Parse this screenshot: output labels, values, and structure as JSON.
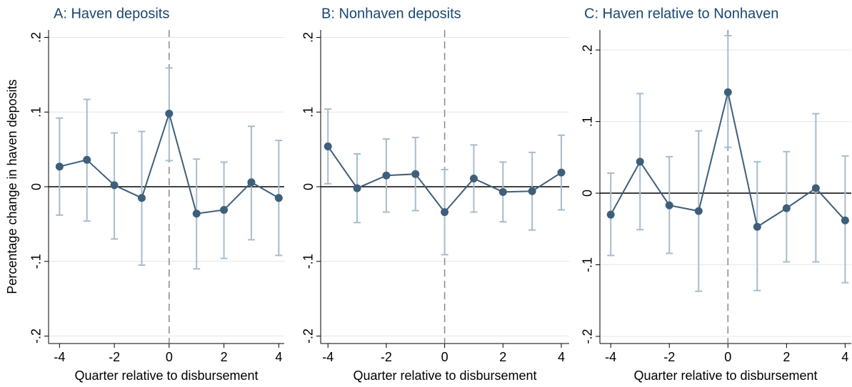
{
  "chart_data": [
    {
      "type": "errorbar-line",
      "title": "A: Haven deposits",
      "xlabel": "Quarter relative to disbursement",
      "ylabel": "Percentage change in haven deposits",
      "x": [
        -4,
        -3,
        -2,
        -1,
        0,
        1,
        2,
        3,
        4
      ],
      "series": [
        {
          "color": "#3e5f7a",
          "ci_color": "#a8bccb",
          "values": [
            0.027,
            0.036,
            0.002,
            -0.015,
            0.098,
            -0.036,
            -0.031,
            0.006,
            -0.015
          ],
          "ci_low": [
            -0.038,
            -0.046,
            -0.07,
            -0.105,
            0.035,
            -0.11,
            -0.096,
            -0.071,
            -0.092
          ],
          "ci_high": [
            0.092,
            0.117,
            0.072,
            0.074,
            0.159,
            0.037,
            0.033,
            0.081,
            0.062
          ]
        }
      ],
      "xlim": [
        -4.4,
        4.2
      ],
      "xticks": [
        -4,
        -2,
        0,
        2,
        4
      ],
      "ylim": [
        -0.21,
        0.21
      ],
      "yticks": [
        {
          "value": -0.2,
          "label": "-.2"
        },
        {
          "value": -0.1,
          "label": "-.1"
        },
        {
          "value": 0,
          "label": "0"
        },
        {
          "value": 0.1,
          "label": ".1"
        },
        {
          "value": 0.2,
          "label": ".2"
        }
      ],
      "grid": true,
      "hline": 0,
      "vline": 0
    },
    {
      "type": "errorbar-line",
      "title": "B: Nonhaven deposits",
      "xlabel": "Quarter relative to disbursement",
      "x": [
        -4,
        -3,
        -2,
        -1,
        0,
        1,
        2,
        3,
        4
      ],
      "series": [
        {
          "color": "#3e5f7a",
          "ci_color": "#a8bccb",
          "values": [
            0.054,
            -0.002,
            0.015,
            0.017,
            -0.034,
            0.011,
            -0.007,
            -0.006,
            0.019
          ],
          "ci_low": [
            0.004,
            -0.048,
            -0.034,
            -0.032,
            -0.091,
            -0.034,
            -0.047,
            -0.058,
            -0.031
          ],
          "ci_high": [
            0.104,
            0.044,
            0.064,
            0.066,
            0.023,
            0.056,
            0.033,
            0.046,
            0.069
          ]
        }
      ],
      "xlim": [
        -4.25,
        4.27
      ],
      "xticks": [
        -4,
        -2,
        0,
        2,
        4
      ],
      "ylim": [
        -0.21,
        0.21
      ],
      "yticks": [
        {
          "value": -0.2,
          "label": "-.2"
        },
        {
          "value": -0.1,
          "label": "-.1"
        },
        {
          "value": 0,
          "label": "0"
        },
        {
          "value": 0.1,
          "label": ".1"
        },
        {
          "value": 0.2,
          "label": ".2"
        }
      ],
      "grid": true,
      "hline": 0,
      "vline": 0
    },
    {
      "type": "errorbar-line",
      "title": "C: Haven relative to Nonhaven",
      "xlabel": "Quarter relative to disbursement",
      "x": [
        -4,
        -3,
        -2,
        -1,
        0,
        1,
        2,
        3,
        4
      ],
      "series": [
        {
          "color": "#3e5f7a",
          "ci_color": "#a8bccb",
          "values": [
            -0.03,
            0.044,
            -0.017,
            -0.025,
            0.141,
            -0.047,
            -0.021,
            0.007,
            -0.038
          ],
          "ci_low": [
            -0.087,
            -0.051,
            -0.084,
            -0.137,
            0.064,
            -0.136,
            -0.096,
            -0.096,
            -0.125
          ],
          "ci_high": [
            0.028,
            0.139,
            0.051,
            0.087,
            0.22,
            0.044,
            0.058,
            0.111,
            0.052
          ]
        }
      ],
      "xlim": [
        -4.37,
        4.21
      ],
      "xticks": [
        -4,
        -2,
        0,
        2,
        4
      ],
      "ylim": [
        -0.21,
        0.228
      ],
      "yticks": [
        {
          "value": -0.2,
          "label": "-.2"
        },
        {
          "value": -0.1,
          "label": "-.1"
        },
        {
          "value": 0,
          "label": "0"
        },
        {
          "value": 0.1,
          "label": ".1"
        },
        {
          "value": 0.2,
          "label": ".2"
        }
      ],
      "grid": true,
      "hline": 0,
      "vline": 0
    }
  ]
}
